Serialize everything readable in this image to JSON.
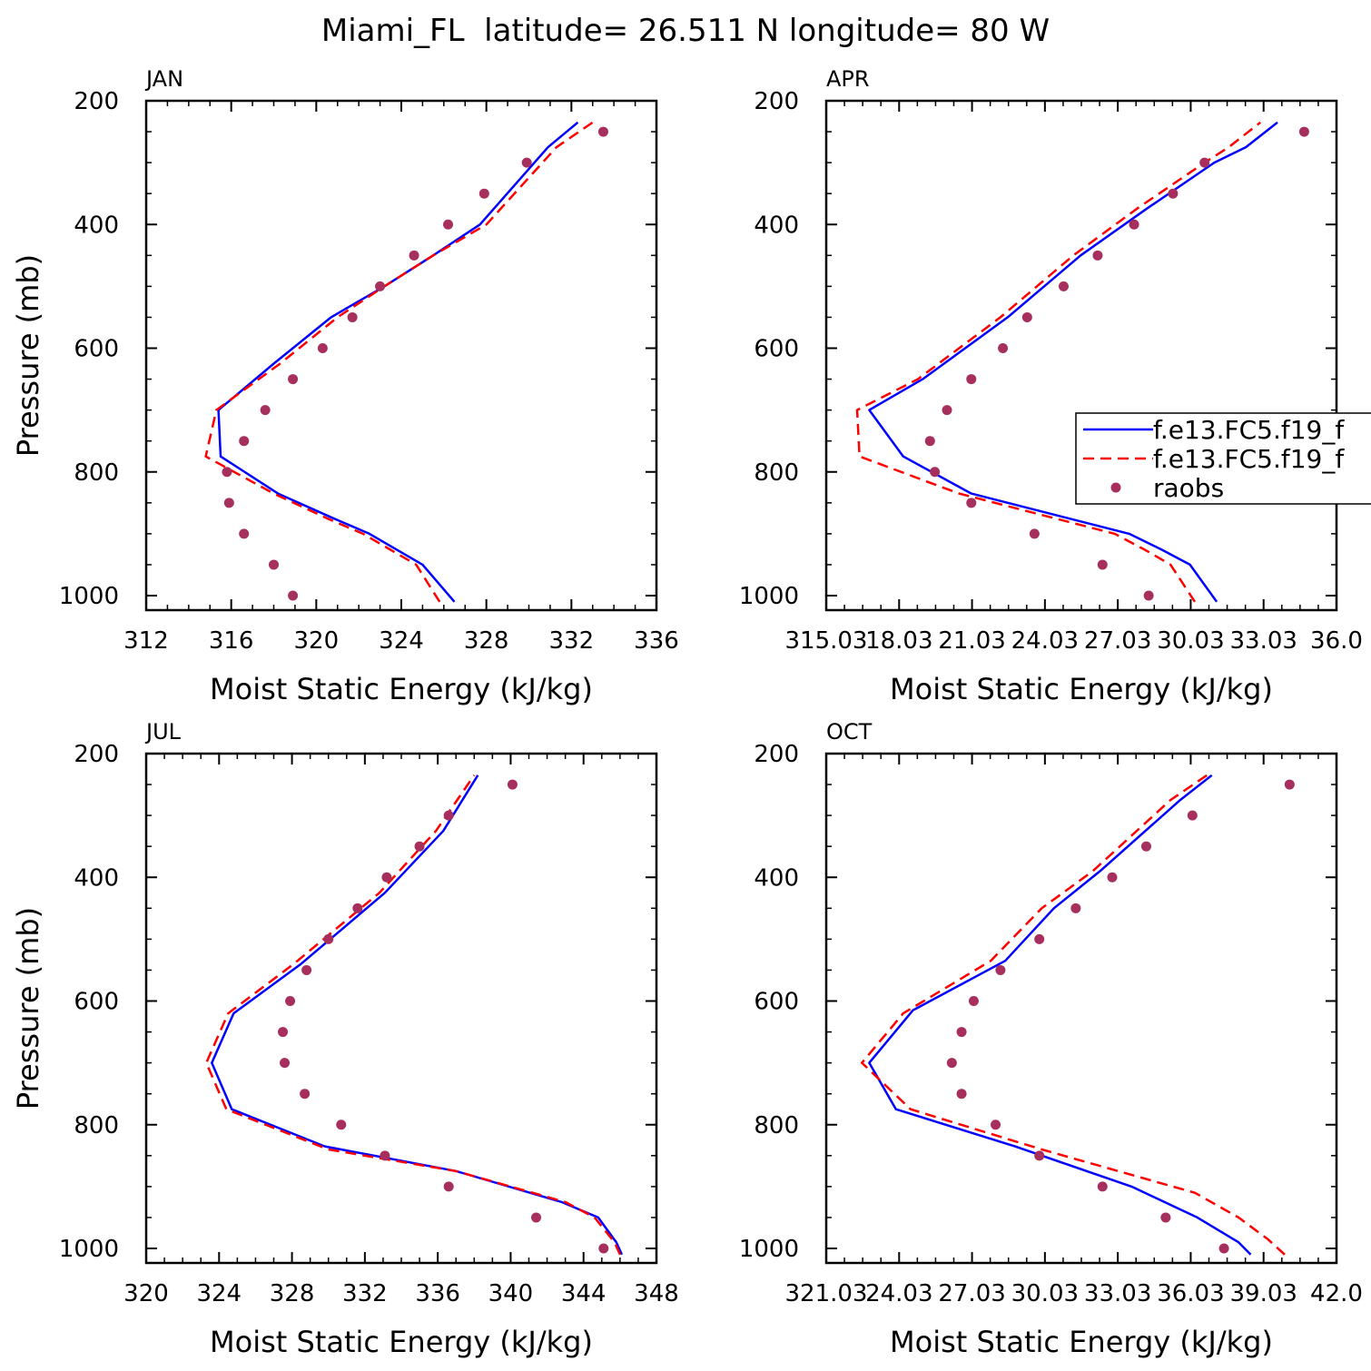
{
  "figure": {
    "title": "Miami_FL  latitude= 26.511 N longitude= 80 W"
  },
  "colors": {
    "model1": "#0000ff",
    "model2": "#ff0000",
    "raobs": "#a62f5d"
  },
  "legend": {
    "placement": "right of APR panel",
    "entries": [
      {
        "label": "f.e13.FC5.f19_f",
        "style": "solid",
        "color": "#0000ff"
      },
      {
        "label": "f.e13.FC5.f19_f",
        "style": "dashed",
        "color": "#ff0000"
      },
      {
        "label": "raobs",
        "style": "marker",
        "color": "#a62f5d"
      }
    ]
  },
  "chart_data": [
    {
      "type": "line",
      "title": "JAN",
      "xlabel": "Moist Static Energy (kJ/kg)",
      "ylabel": "Pressure (mb)",
      "xlim": [
        312,
        336
      ],
      "ylim": [
        1000,
        200
      ],
      "xticks": [
        312,
        316,
        320,
        324,
        328,
        332,
        336
      ],
      "xtick_labels": [
        "312",
        "316",
        "320",
        "324",
        "328",
        "332",
        "336"
      ],
      "yticks": [
        200,
        400,
        600,
        800,
        1000
      ],
      "ytick_labels": [
        "200",
        "400",
        "600",
        "800",
        "1000"
      ],
      "series": [
        {
          "style": "solid",
          "points": [
            [
              326.5,
              1010
            ],
            [
              325.0,
              950
            ],
            [
              322.5,
              900
            ],
            [
              320.8,
              875
            ],
            [
              318.2,
              835
            ],
            [
              315.5,
              775
            ],
            [
              315.4,
              700
            ],
            [
              318.0,
              625
            ],
            [
              320.7,
              550
            ],
            [
              323.2,
              500
            ],
            [
              325.5,
              450
            ],
            [
              327.7,
              400
            ],
            [
              330.9,
              275
            ],
            [
              332.3,
              235
            ]
          ]
        },
        {
          "style": "dashed",
          "points": [
            [
              325.8,
              1010
            ],
            [
              324.7,
              950
            ],
            [
              322.2,
              900
            ],
            [
              320.5,
              875
            ],
            [
              318.0,
              835
            ],
            [
              314.8,
              775
            ],
            [
              315.3,
              700
            ],
            [
              318.3,
              625
            ],
            [
              321.0,
              550
            ],
            [
              323.2,
              500
            ],
            [
              325.5,
              450
            ],
            [
              328.0,
              400
            ],
            [
              331.3,
              275
            ],
            [
              333.0,
              235
            ]
          ]
        },
        {
          "style": "marker",
          "points": [
            [
              318.9,
              1000
            ],
            [
              318.0,
              950
            ],
            [
              316.6,
              900
            ],
            [
              315.9,
              850
            ],
            [
              315.8,
              800
            ],
            [
              316.6,
              750
            ],
            [
              317.6,
              700
            ],
            [
              318.9,
              650
            ],
            [
              320.3,
              600
            ],
            [
              321.7,
              550
            ],
            [
              323.0,
              500
            ],
            [
              324.6,
              450
            ],
            [
              326.2,
              400
            ],
            [
              327.9,
              350
            ],
            [
              329.9,
              300
            ],
            [
              333.5,
              250
            ]
          ]
        }
      ]
    },
    {
      "type": "line",
      "title": "APR",
      "xlabel": "Moist Static Energy (kJ/kg)",
      "ylabel": "",
      "xlim": [
        315.03,
        336.03
      ],
      "ylim": [
        1000,
        200
      ],
      "xticks": [
        315.03,
        318.03,
        321.03,
        324.03,
        327.03,
        330.03,
        333.03,
        336.03
      ],
      "xtick_labels": [
        "315.03",
        "18.03",
        "21.03",
        "24.03",
        "27.03",
        "30.03",
        "33.03",
        "36.0"
      ],
      "yticks": [
        200,
        400,
        600,
        800,
        1000
      ],
      "ytick_labels": [
        "200",
        "400",
        "600",
        "800",
        "1000"
      ],
      "series": [
        {
          "style": "solid",
          "points": [
            [
              331.1,
              1010
            ],
            [
              330.0,
              950
            ],
            [
              328.8,
              925
            ],
            [
              327.5,
              900
            ],
            [
              321.0,
              835
            ],
            [
              318.2,
              775
            ],
            [
              316.8,
              700
            ],
            [
              319.0,
              650
            ],
            [
              322.5,
              550
            ],
            [
              325.5,
              450
            ],
            [
              328.2,
              375
            ],
            [
              331.0,
              300
            ],
            [
              332.3,
              275
            ],
            [
              333.6,
              235
            ]
          ]
        },
        {
          "style": "dashed",
          "points": [
            [
              330.2,
              1010
            ],
            [
              329.2,
              950
            ],
            [
              328.1,
              925
            ],
            [
              326.9,
              900
            ],
            [
              320.5,
              835
            ],
            [
              316.4,
              775
            ],
            [
              316.3,
              700
            ],
            [
              318.8,
              650
            ],
            [
              322.2,
              550
            ],
            [
              325.2,
              450
            ],
            [
              327.8,
              375
            ],
            [
              330.6,
              300
            ],
            [
              331.6,
              275
            ],
            [
              332.9,
              235
            ]
          ]
        },
        {
          "style": "marker",
          "points": [
            [
              328.3,
              1000
            ],
            [
              326.4,
              950
            ],
            [
              323.6,
              900
            ],
            [
              321.0,
              850
            ],
            [
              319.5,
              800
            ],
            [
              319.3,
              750
            ],
            [
              320.0,
              700
            ],
            [
              321.0,
              650
            ],
            [
              322.3,
              600
            ],
            [
              323.3,
              550
            ],
            [
              324.8,
              500
            ],
            [
              326.2,
              450
            ],
            [
              327.7,
              400
            ],
            [
              329.3,
              350
            ],
            [
              330.6,
              300
            ],
            [
              334.7,
              250
            ]
          ]
        }
      ]
    },
    {
      "type": "line",
      "title": "JUL",
      "xlabel": "Moist Static Energy (kJ/kg)",
      "ylabel": "Pressure (mb)",
      "xlim": [
        320,
        348
      ],
      "ylim": [
        1000,
        200
      ],
      "xticks": [
        320,
        324,
        328,
        332,
        336,
        340,
        344,
        348
      ],
      "xtick_labels": [
        "320",
        "324",
        "328",
        "332",
        "336",
        "340",
        "344",
        "348"
      ],
      "yticks": [
        200,
        400,
        600,
        800,
        1000
      ],
      "ytick_labels": [
        "200",
        "400",
        "600",
        "800",
        "1000"
      ],
      "series": [
        {
          "style": "solid",
          "points": [
            [
              346.1,
              1010
            ],
            [
              345.8,
              990
            ],
            [
              344.8,
              950
            ],
            [
              342.8,
              925
            ],
            [
              337.0,
              875
            ],
            [
              329.8,
              835
            ],
            [
              324.7,
              775
            ],
            [
              323.6,
              700
            ],
            [
              324.8,
              620
            ],
            [
              328.5,
              540
            ],
            [
              333.1,
              425
            ],
            [
              336.3,
              325
            ],
            [
              338.2,
              235
            ]
          ]
        },
        {
          "style": "dashed",
          "points": [
            [
              346.0,
              1010
            ],
            [
              345.7,
              990
            ],
            [
              344.6,
              950
            ],
            [
              343.0,
              925
            ],
            [
              337.0,
              875
            ],
            [
              330.0,
              840
            ],
            [
              324.4,
              775
            ],
            [
              323.3,
              700
            ],
            [
              324.5,
              620
            ],
            [
              328.1,
              540
            ],
            [
              332.8,
              425
            ],
            [
              335.9,
              325
            ],
            [
              338.0,
              235
            ]
          ]
        },
        {
          "style": "marker",
          "points": [
            [
              345.1,
              1000
            ],
            [
              341.4,
              950
            ],
            [
              336.6,
              900
            ],
            [
              333.1,
              850
            ],
            [
              330.7,
              800
            ],
            [
              328.7,
              750
            ],
            [
              327.6,
              700
            ],
            [
              327.5,
              650
            ],
            [
              327.9,
              600
            ],
            [
              328.8,
              550
            ],
            [
              330.0,
              500
            ],
            [
              331.6,
              450
            ],
            [
              333.2,
              400
            ],
            [
              335.0,
              350
            ],
            [
              336.6,
              300
            ],
            [
              340.1,
              250
            ]
          ]
        }
      ]
    },
    {
      "type": "line",
      "title": "OCT",
      "xlabel": "Moist Static Energy (kJ/kg)",
      "ylabel": "",
      "xlim": [
        321.03,
        342.03
      ],
      "ylim": [
        1000,
        200
      ],
      "xticks": [
        321.03,
        324.03,
        327.03,
        330.03,
        333.03,
        336.03,
        339.03,
        342.03
      ],
      "xtick_labels": [
        "321.03",
        "24.03",
        "27.03",
        "30.03",
        "33.03",
        "36.03",
        "39.03",
        "42.0"
      ],
      "yticks": [
        200,
        400,
        600,
        800,
        1000
      ],
      "ytick_labels": [
        "200",
        "400",
        "600",
        "800",
        "1000"
      ],
      "series": [
        {
          "style": "solid",
          "points": [
            [
              338.5,
              1010
            ],
            [
              338.0,
              990
            ],
            [
              336.3,
              950
            ],
            [
              333.6,
              900
            ],
            [
              328.8,
              835
            ],
            [
              323.9,
              775
            ],
            [
              322.8,
              700
            ],
            [
              324.6,
              615
            ],
            [
              328.4,
              535
            ],
            [
              330.4,
              450
            ],
            [
              332.3,
              390
            ],
            [
              335.6,
              275
            ],
            [
              336.9,
              235
            ]
          ]
        },
        {
          "style": "dashed",
          "points": [
            [
              339.9,
              1010
            ],
            [
              339.2,
              985
            ],
            [
              338.0,
              950
            ],
            [
              336.2,
              910
            ],
            [
              329.9,
              840
            ],
            [
              324.5,
              775
            ],
            [
              322.5,
              700
            ],
            [
              324.2,
              620
            ],
            [
              327.8,
              535
            ],
            [
              329.9,
              450
            ],
            [
              332.0,
              390
            ],
            [
              335.2,
              275
            ],
            [
              336.7,
              235
            ]
          ]
        },
        {
          "style": "marker",
          "points": [
            [
              337.4,
              1000
            ],
            [
              335.0,
              950
            ],
            [
              332.4,
              900
            ],
            [
              329.8,
              850
            ],
            [
              328.0,
              800
            ],
            [
              326.6,
              750
            ],
            [
              326.2,
              700
            ],
            [
              326.6,
              650
            ],
            [
              327.1,
              600
            ],
            [
              328.2,
              550
            ],
            [
              329.8,
              500
            ],
            [
              331.3,
              450
            ],
            [
              332.8,
              400
            ],
            [
              334.2,
              350
            ],
            [
              336.1,
              300
            ],
            [
              340.1,
              250
            ]
          ]
        }
      ]
    }
  ]
}
